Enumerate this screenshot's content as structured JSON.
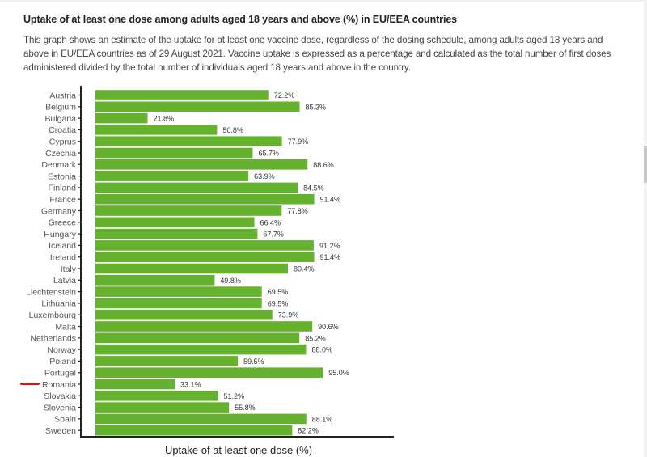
{
  "header": {
    "title": "Uptake of at least one dose among adults aged 18 years and above (%) in EU/EEA countries",
    "description": "This graph shows an estimate of the uptake for at least one vaccine dose, regardless of the dosing schedule, among adults aged 18 years and above in EU/EEA countries as of 29 August 2021. Vaccine uptake is expressed as a percentage and calculated as the total number of first doses administered divided by the total number of individuals aged 18 years and above in the country."
  },
  "annotation": {
    "highlighted_country": "Romania",
    "marker_color": "#d8141c"
  },
  "chart_data": {
    "type": "bar",
    "orientation": "horizontal",
    "title": "",
    "xlabel": "Uptake of at least one dose  (%)",
    "ylabel": "",
    "xlim": [
      0,
      100
    ],
    "grid": false,
    "bar_color": "#64b22e",
    "categories": [
      "Austria",
      "Belgium",
      "Bulgaria",
      "Croatia",
      "Cyprus",
      "Czechia",
      "Denmark",
      "Estonia",
      "Finland",
      "France",
      "Germany",
      "Greece",
      "Hungary",
      "Iceland",
      "Ireland",
      "Italy",
      "Latvia",
      "Liechtenstein",
      "Lithuania",
      "Luxembourg",
      "Malta",
      "Netherlands",
      "Norway",
      "Poland",
      "Portugal",
      "Romania",
      "Slovakia",
      "Slovenia",
      "Spain",
      "Sweden"
    ],
    "values": [
      72.2,
      85.3,
      21.8,
      50.8,
      77.9,
      65.7,
      88.6,
      63.9,
      84.5,
      91.4,
      77.8,
      66.4,
      67.7,
      91.2,
      91.4,
      80.4,
      49.8,
      69.5,
      69.5,
      73.9,
      90.6,
      85.2,
      88.0,
      59.5,
      95.0,
      33.1,
      51.2,
      55.8,
      88.1,
      82.2
    ],
    "labels": [
      "72.2%",
      "85.3%",
      "21.8%",
      "50.8%",
      "77.9%",
      "65.7%",
      "88.6%",
      "63.9%",
      "84.5%",
      "91.4%",
      "77.8%",
      "66.4%",
      "67.7%",
      "91.2%",
      "91.4%",
      "80.4%",
      "49.8%",
      "69.5%",
      "69.5%",
      "73.9%",
      "90.6%",
      "85.2%",
      "88.0%",
      "59.5%",
      "95.0%",
      "33.1%",
      "51.2%",
      "55.8%",
      "88.1%",
      "82.2%"
    ]
  }
}
